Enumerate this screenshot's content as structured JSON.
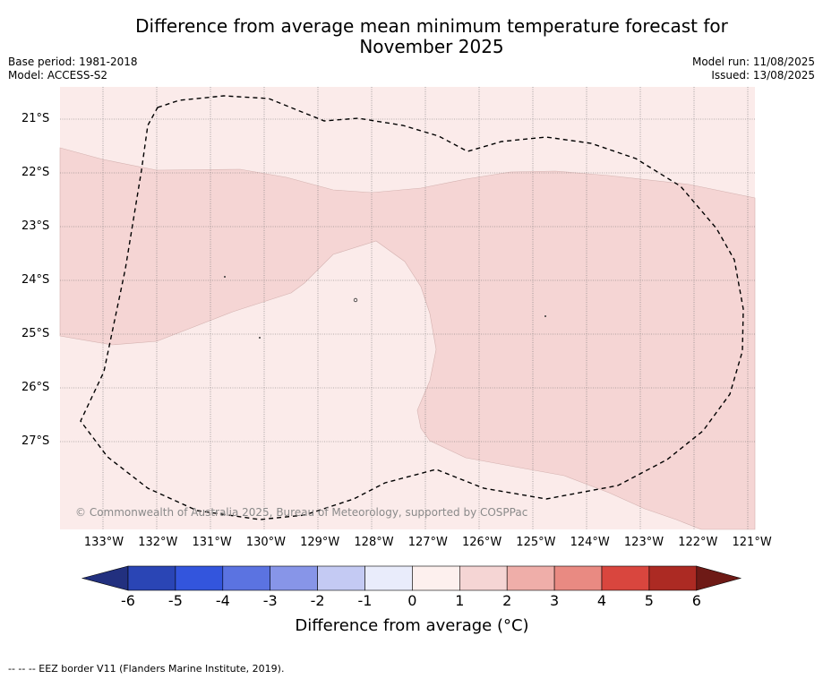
{
  "header": {
    "title_line1": "Difference from average mean minimum temperature forecast for",
    "title_line2": "November 2025",
    "base_period": "Base period: 1981-2018",
    "model": "Model: ACCESS-S2",
    "model_run": "Model run: 11/08/2025",
    "issued": "Issued: 13/08/2025"
  },
  "map": {
    "lat_labels": [
      "21°S",
      "22°S",
      "23°S",
      "24°S",
      "25°S",
      "26°S",
      "27°S"
    ],
    "lon_labels": [
      "133°W",
      "132°W",
      "131°W",
      "130°W",
      "129°W",
      "128°W",
      "127°W",
      "126°W",
      "125°W",
      "124°W",
      "123°W",
      "122°W",
      "121°W"
    ],
    "copyright": "© Commonwealth of Australia 2025, Bureau of Meteorology, supported by COSPPac",
    "colors": {
      "anomaly_0_1": "#fbebea",
      "anomaly_1_2": "#f5d5d4"
    }
  },
  "colorbar": {
    "tick_labels": [
      "-6",
      "-5",
      "-4",
      "-3",
      "-2",
      "-1",
      "0",
      "1",
      "2",
      "3",
      "4",
      "5",
      "6"
    ],
    "label": "Difference from average (°C)",
    "colors": [
      "#22307f",
      "#2a45b5",
      "#3355dd",
      "#5b73e1",
      "#8795e8",
      "#c4caf3",
      "#e9ecfb",
      "#fdf0ee",
      "#f5d5d4",
      "#efaea9",
      "#e98a82",
      "#d9463e",
      "#ac2a23",
      "#6e1a16"
    ]
  },
  "footer": {
    "eez_note": "--  --  -- EEZ border V11 (Flanders Marine Institute, 2019)."
  }
}
